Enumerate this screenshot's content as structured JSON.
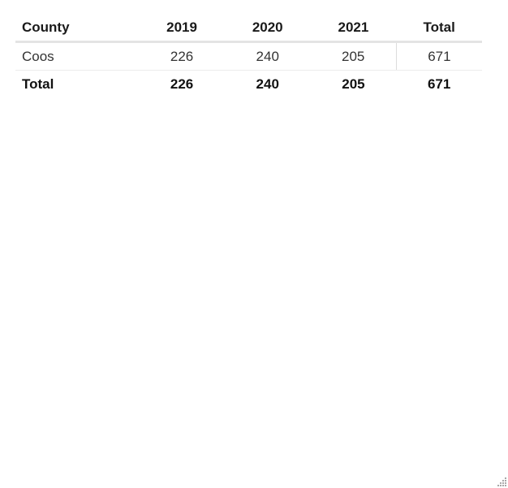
{
  "table": {
    "headers": [
      "County",
      "2019",
      "2020",
      "2021",
      "Total"
    ],
    "rows": [
      {
        "county": "Coos",
        "y2019": "226",
        "y2020": "240",
        "y2021": "205",
        "total": "671"
      }
    ],
    "totals": {
      "label": "Total",
      "y2019": "226",
      "y2020": "240",
      "y2021": "205",
      "total": "671"
    }
  }
}
